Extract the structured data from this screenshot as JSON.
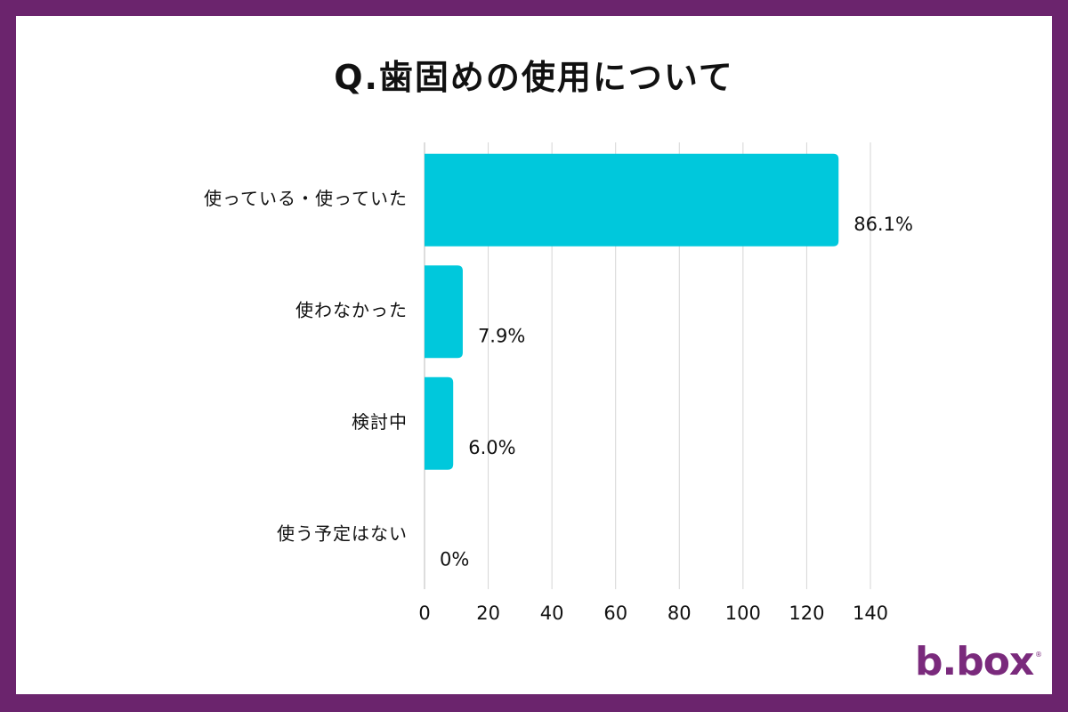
{
  "title": "Q.歯固めの使用について",
  "brand": {
    "logo_text": "b.box",
    "logo_reg": "®",
    "color": "#7a2a7c"
  },
  "colors": {
    "frame": "#6b246d",
    "bar": "#00c8dc",
    "grid": "#d6d6d6"
  },
  "chart_data": {
    "type": "bar",
    "orientation": "horizontal",
    "categories": [
      "使っている・使っていた",
      "使わなかった",
      "検討中",
      "使う予定はない"
    ],
    "values": [
      130,
      12,
      9,
      0
    ],
    "data_labels": [
      "86.1%",
      "7.9%",
      "6.0%",
      "0%"
    ],
    "xticks": [
      "0",
      "20",
      "40",
      "60",
      "80",
      "100",
      "120",
      "140"
    ],
    "xlim": [
      0,
      140
    ],
    "grid": true,
    "legend": "none"
  }
}
